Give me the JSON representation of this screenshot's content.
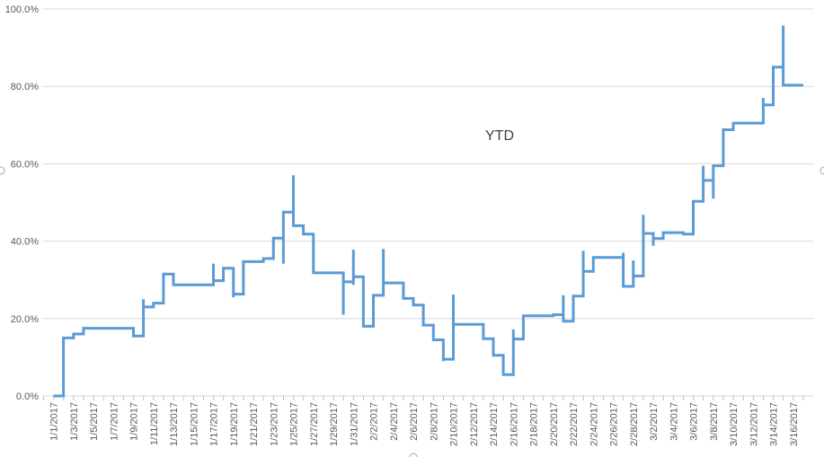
{
  "chart_data": {
    "type": "line",
    "title": "YTD",
    "xlabel": "",
    "ylabel": "",
    "y_tick_labels": [
      "0.0%",
      "20.0%",
      "40.0%",
      "60.0%",
      "80.0%",
      "100.0%"
    ],
    "ylim": [
      0,
      100
    ],
    "grid": true,
    "legend": "none",
    "x_tick_labels": [
      "1/1/2017",
      "1/3/2017",
      "1/5/2017",
      "1/7/2017",
      "1/9/2017",
      "1/11/2017",
      "1/13/2017",
      "1/15/2017",
      "1/17/2017",
      "1/19/2017",
      "1/21/2017",
      "1/23/2017",
      "1/25/2017",
      "1/27/2017",
      "1/29/2017",
      "1/31/2017",
      "2/2/2017",
      "2/4/2017",
      "2/6/2017",
      "2/8/2017",
      "2/10/2017",
      "2/12/2017",
      "2/14/2017",
      "2/16/2017",
      "2/18/2017",
      "2/20/2017",
      "2/22/2017",
      "2/24/2017",
      "2/26/2017",
      "2/28/2017",
      "3/2/2017",
      "3/4/2017",
      "3/6/2017",
      "3/8/2017",
      "3/10/2017",
      "3/12/2017",
      "3/14/2017",
      "3/16/2017"
    ],
    "series": [
      {
        "color": "#5b9bd5",
        "points": [
          {
            "x": "1/1/2017",
            "y": 0.0
          },
          {
            "x": "1/2/2017",
            "y": 0.0
          },
          {
            "x": "1/2/2017",
            "y": 15.0
          },
          {
            "x": "1/3/2017",
            "y": 15.0
          },
          {
            "x": "1/3/2017",
            "y": 16.0
          },
          {
            "x": "1/4/2017",
            "y": 16.0
          },
          {
            "x": "1/4/2017",
            "y": 17.5
          },
          {
            "x": "1/9/2017",
            "y": 17.5
          },
          {
            "x": "1/9/2017",
            "y": 15.5
          },
          {
            "x": "1/10/2017",
            "y": 15.5
          },
          {
            "x": "1/10/2017",
            "y": 25.0
          },
          {
            "x": "1/10/2017",
            "y": 23.0
          },
          {
            "x": "1/11/2017",
            "y": 23.0
          },
          {
            "x": "1/11/2017",
            "y": 24.0
          },
          {
            "x": "1/12/2017",
            "y": 24.0
          },
          {
            "x": "1/12/2017",
            "y": 31.5
          },
          {
            "x": "1/13/2017",
            "y": 31.5
          },
          {
            "x": "1/13/2017",
            "y": 28.7
          },
          {
            "x": "1/17/2017",
            "y": 28.7
          },
          {
            "x": "1/17/2017",
            "y": 34.2
          },
          {
            "x": "1/17/2017",
            "y": 29.8
          },
          {
            "x": "1/18/2017",
            "y": 29.8
          },
          {
            "x": "1/18/2017",
            "y": 33.0
          },
          {
            "x": "1/19/2017",
            "y": 33.0
          },
          {
            "x": "1/19/2017",
            "y": 25.5
          },
          {
            "x": "1/19/2017",
            "y": 26.3
          },
          {
            "x": "1/20/2017",
            "y": 26.3
          },
          {
            "x": "1/20/2017",
            "y": 34.7
          },
          {
            "x": "1/22/2017",
            "y": 34.7
          },
          {
            "x": "1/22/2017",
            "y": 35.5
          },
          {
            "x": "1/23/2017",
            "y": 35.5
          },
          {
            "x": "1/23/2017",
            "y": 40.8
          },
          {
            "x": "1/24/2017",
            "y": 40.8
          },
          {
            "x": "1/24/2017",
            "y": 34.2
          },
          {
            "x": "1/24/2017",
            "y": 47.5
          },
          {
            "x": "1/25/2017",
            "y": 47.5
          },
          {
            "x": "1/25/2017",
            "y": 57.0
          },
          {
            "x": "1/25/2017",
            "y": 44.0
          },
          {
            "x": "1/26/2017",
            "y": 44.0
          },
          {
            "x": "1/26/2017",
            "y": 41.8
          },
          {
            "x": "1/27/2017",
            "y": 41.8
          },
          {
            "x": "1/27/2017",
            "y": 31.8
          },
          {
            "x": "1/30/2017",
            "y": 31.8
          },
          {
            "x": "1/30/2017",
            "y": 21.0
          },
          {
            "x": "1/30/2017",
            "y": 29.5
          },
          {
            "x": "1/31/2017",
            "y": 29.5
          },
          {
            "x": "1/31/2017",
            "y": 37.8
          },
          {
            "x": "1/31/2017",
            "y": 28.7
          },
          {
            "x": "1/31/2017",
            "y": 30.8
          },
          {
            "x": "2/1/2017",
            "y": 30.8
          },
          {
            "x": "2/1/2017",
            "y": 18.0
          },
          {
            "x": "2/2/2017",
            "y": 18.0
          },
          {
            "x": "2/2/2017",
            "y": 26.0
          },
          {
            "x": "2/3/2017",
            "y": 26.0
          },
          {
            "x": "2/3/2017",
            "y": 38.0
          },
          {
            "x": "2/3/2017",
            "y": 29.2
          },
          {
            "x": "2/5/2017",
            "y": 29.2
          },
          {
            "x": "2/5/2017",
            "y": 25.2
          },
          {
            "x": "2/6/2017",
            "y": 25.2
          },
          {
            "x": "2/6/2017",
            "y": 23.5
          },
          {
            "x": "2/7/2017",
            "y": 23.5
          },
          {
            "x": "2/7/2017",
            "y": 18.3
          },
          {
            "x": "2/8/2017",
            "y": 18.3
          },
          {
            "x": "2/8/2017",
            "y": 14.5
          },
          {
            "x": "2/9/2017",
            "y": 14.5
          },
          {
            "x": "2/9/2017",
            "y": 9.0
          },
          {
            "x": "2/9/2017",
            "y": 9.5
          },
          {
            "x": "2/10/2017",
            "y": 9.5
          },
          {
            "x": "2/10/2017",
            "y": 26.2
          },
          {
            "x": "2/10/2017",
            "y": 18.5
          },
          {
            "x": "2/13/2017",
            "y": 18.5
          },
          {
            "x": "2/13/2017",
            "y": 14.8
          },
          {
            "x": "2/14/2017",
            "y": 14.8
          },
          {
            "x": "2/14/2017",
            "y": 10.5
          },
          {
            "x": "2/15/2017",
            "y": 10.5
          },
          {
            "x": "2/15/2017",
            "y": 5.5
          },
          {
            "x": "2/16/2017",
            "y": 5.5
          },
          {
            "x": "2/16/2017",
            "y": 17.2
          },
          {
            "x": "2/16/2017",
            "y": 14.7
          },
          {
            "x": "2/17/2017",
            "y": 14.7
          },
          {
            "x": "2/17/2017",
            "y": 20.7
          },
          {
            "x": "2/20/2017",
            "y": 20.7
          },
          {
            "x": "2/20/2017",
            "y": 21.0
          },
          {
            "x": "2/21/2017",
            "y": 21.0
          },
          {
            "x": "2/21/2017",
            "y": 26.0
          },
          {
            "x": "2/21/2017",
            "y": 19.3
          },
          {
            "x": "2/22/2017",
            "y": 19.3
          },
          {
            "x": "2/22/2017",
            "y": 25.8
          },
          {
            "x": "2/23/2017",
            "y": 25.8
          },
          {
            "x": "2/23/2017",
            "y": 37.5
          },
          {
            "x": "2/23/2017",
            "y": 32.2
          },
          {
            "x": "2/24/2017",
            "y": 32.2
          },
          {
            "x": "2/24/2017",
            "y": 35.8
          },
          {
            "x": "2/27/2017",
            "y": 35.8
          },
          {
            "x": "2/27/2017",
            "y": 37.0
          },
          {
            "x": "2/27/2017",
            "y": 28.3
          },
          {
            "x": "2/28/2017",
            "y": 28.3
          },
          {
            "x": "2/28/2017",
            "y": 35.0
          },
          {
            "x": "2/28/2017",
            "y": 31.0
          },
          {
            "x": "3/1/2017",
            "y": 31.0
          },
          {
            "x": "3/1/2017",
            "y": 46.8
          },
          {
            "x": "3/1/2017",
            "y": 42.0
          },
          {
            "x": "3/2/2017",
            "y": 42.0
          },
          {
            "x": "3/2/2017",
            "y": 38.8
          },
          {
            "x": "3/2/2017",
            "y": 40.7
          },
          {
            "x": "3/3/2017",
            "y": 40.7
          },
          {
            "x": "3/3/2017",
            "y": 42.2
          },
          {
            "x": "3/5/2017",
            "y": 42.2
          },
          {
            "x": "3/5/2017",
            "y": 41.8
          },
          {
            "x": "3/6/2017",
            "y": 41.8
          },
          {
            "x": "3/6/2017",
            "y": 50.3
          },
          {
            "x": "3/7/2017",
            "y": 50.3
          },
          {
            "x": "3/7/2017",
            "y": 59.5
          },
          {
            "x": "3/7/2017",
            "y": 55.7
          },
          {
            "x": "3/8/2017",
            "y": 55.7
          },
          {
            "x": "3/8/2017",
            "y": 51.0
          },
          {
            "x": "3/8/2017",
            "y": 59.5
          },
          {
            "x": "3/9/2017",
            "y": 59.5
          },
          {
            "x": "3/9/2017",
            "y": 68.8
          },
          {
            "x": "3/10/2017",
            "y": 68.8
          },
          {
            "x": "3/10/2017",
            "y": 70.5
          },
          {
            "x": "3/13/2017",
            "y": 70.5
          },
          {
            "x": "3/13/2017",
            "y": 77.0
          },
          {
            "x": "3/13/2017",
            "y": 75.2
          },
          {
            "x": "3/14/2017",
            "y": 75.2
          },
          {
            "x": "3/14/2017",
            "y": 85.0
          },
          {
            "x": "3/15/2017",
            "y": 85.0
          },
          {
            "x": "3/15/2017",
            "y": 95.7
          },
          {
            "x": "3/15/2017",
            "y": 80.3
          },
          {
            "x": "3/17/2017",
            "y": 80.3
          }
        ]
      }
    ]
  }
}
